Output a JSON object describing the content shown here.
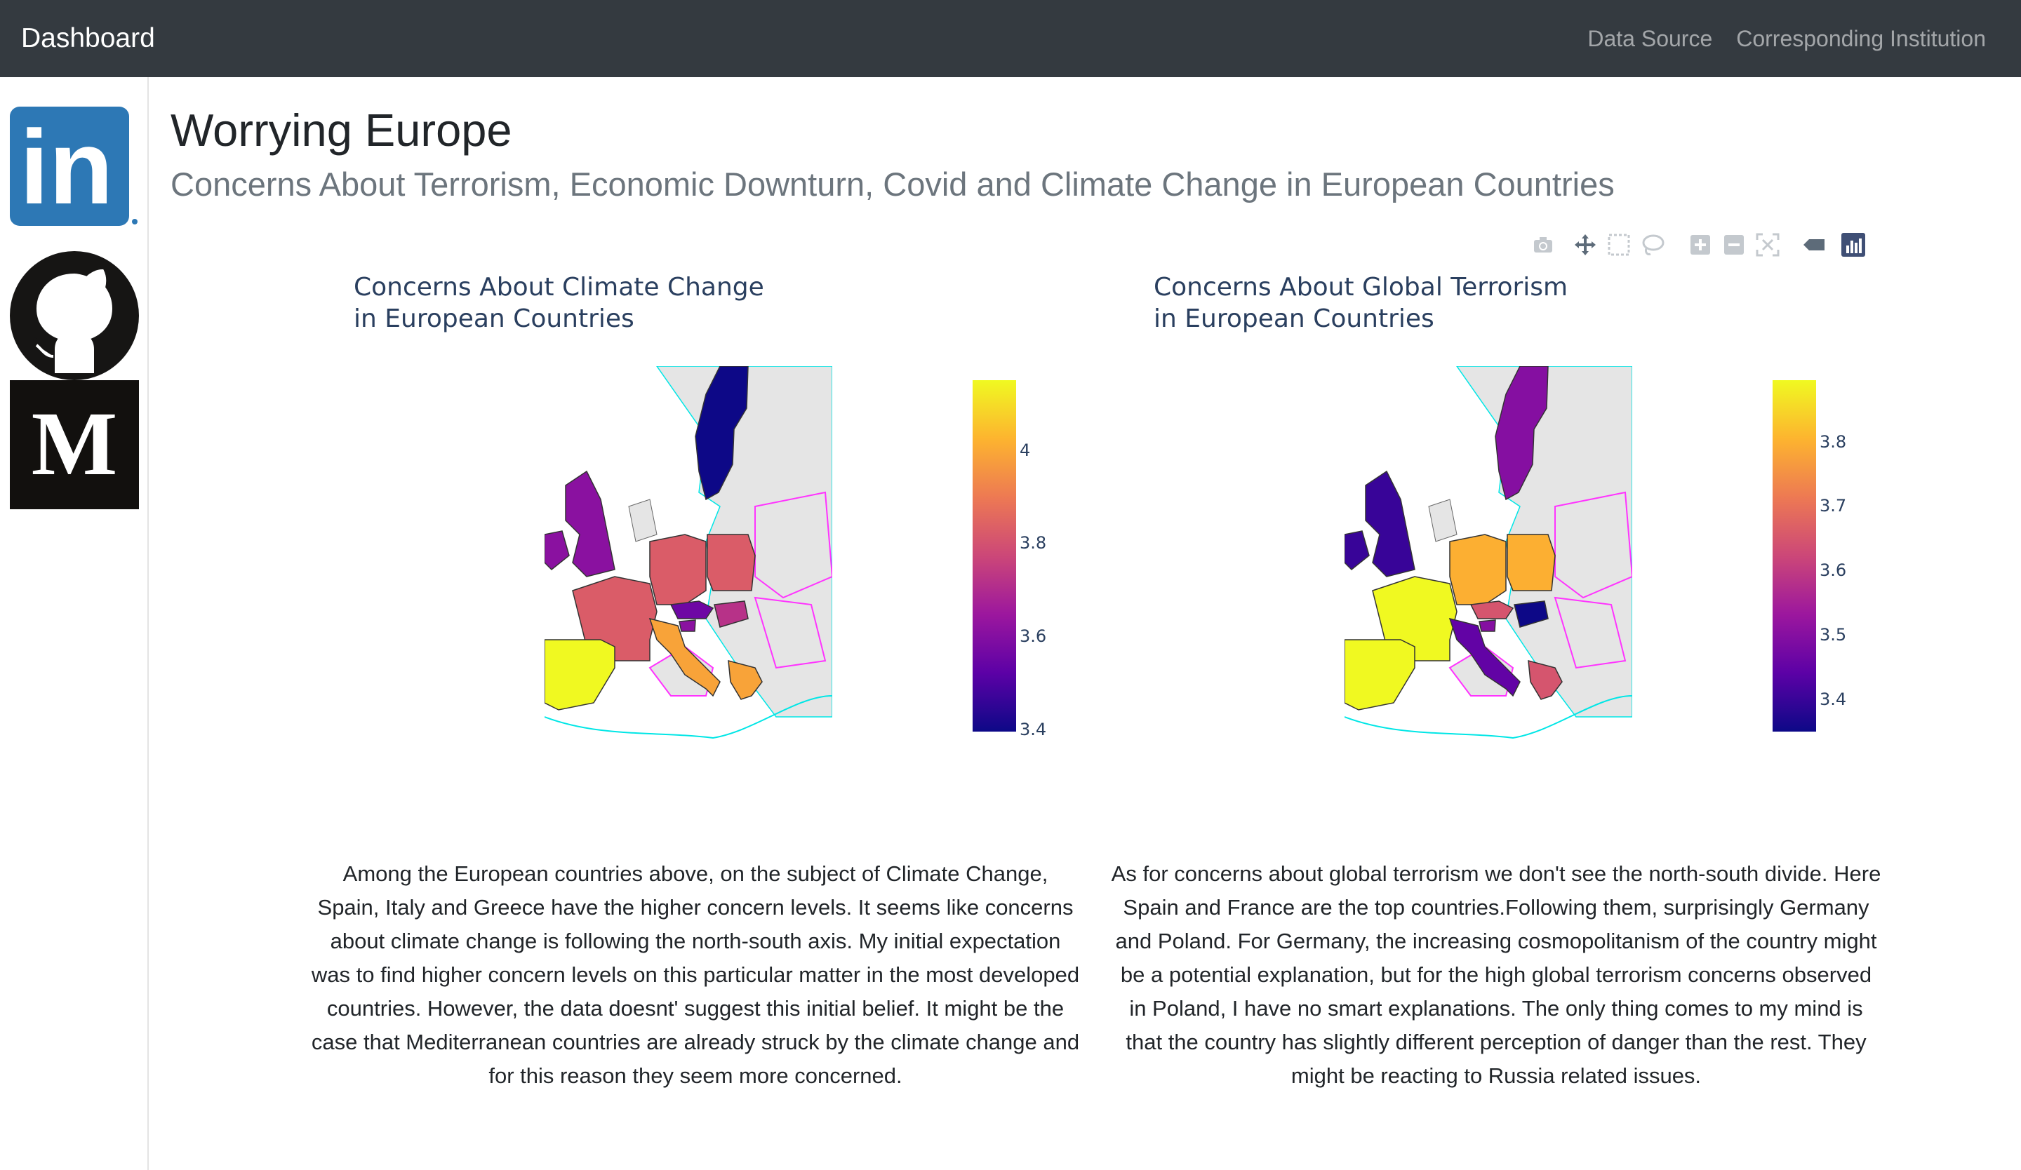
{
  "navbar": {
    "brand": "Dashboard",
    "links": [
      "Data Source",
      "Corresponding Institution"
    ]
  },
  "sidebar": {
    "icons": [
      "linkedin-icon",
      "github-icon",
      "medium-icon"
    ],
    "medium_letter": "M",
    "linkedin_letters": "in"
  },
  "header": {
    "title": "Worrying Europe",
    "subtitle": "Concerns About Terrorism, Economic Downturn, Covid and Climate Change in European Countries"
  },
  "modebar": {
    "icons": [
      "camera-icon",
      "pan-icon",
      "box-select-icon",
      "lasso-icon",
      "zoom-in-icon",
      "zoom-out-icon",
      "autoscale-icon",
      "hover-icon",
      "plotly-logo-icon"
    ]
  },
  "charts": {
    "left": {
      "title_line1": "Concerns About Climate Change",
      "title_line2": "in European Countries",
      "colorbar_ticks": [
        "4",
        "3.8",
        "3.6",
        "3.4"
      ]
    },
    "right": {
      "title_line1": "Concerns About Global Terrorism",
      "title_line2": "in European Countries",
      "colorbar_ticks": [
        "3.8",
        "3.7",
        "3.6",
        "3.5",
        "3.4"
      ]
    }
  },
  "chart_data": [
    {
      "type": "choropleth",
      "title": "Concerns About Climate Change in European Countries",
      "colorscale": "plasma",
      "colorbar_range": [
        3.4,
        4.1
      ],
      "colorbar_ticks": [
        3.4,
        3.6,
        3.8,
        4
      ],
      "values": {
        "Sweden": 3.4,
        "Germany": 3.8,
        "Poland": 3.8,
        "France": 3.8,
        "United Kingdom": 3.6,
        "Ireland": 3.6,
        "Spain": 4.1,
        "Italy": 3.95,
        "Greece": 3.95,
        "Austria": 3.55,
        "Hungary": 3.7,
        "Slovenia": 3.6
      }
    },
    {
      "type": "choropleth",
      "title": "Concerns About Global Terrorism in European Countries",
      "colorscale": "plasma",
      "colorbar_range": [
        3.35,
        3.9
      ],
      "colorbar_ticks": [
        3.4,
        3.5,
        3.6,
        3.7,
        3.8
      ],
      "values": {
        "Sweden": 3.5,
        "Germany": 3.8,
        "Poland": 3.8,
        "France": 3.9,
        "United Kingdom": 3.4,
        "Ireland": 3.4,
        "Spain": 3.9,
        "Italy": 3.45,
        "Greece": 3.65,
        "Austria": 3.65,
        "Hungary": 3.35,
        "Slovenia": 3.5
      }
    }
  ],
  "paragraphs": {
    "left": "Among the European countries above, on the subject of Climate Change, Spain, Italy and Greece have the higher concern levels. It seems like concerns about climate change is following the north-south axis. My initial expectation was to find higher concern levels on this particular matter in the most developed countries. However, the data doesnt' suggest this initial belief. It might be the case that Mediterranean countries are already struck by the climate change and for this reason they seem more concerned.",
    "right": "As for concerns about global terrorism we don't see the north-south divide. Here Spain and France are the top countries.Following them, surprisingly Germany and Poland. For Germany, the increasing cosmopolitanism of the country might be a potential explanation, but for the high global terrorism concerns observed in Poland, I have no smart explanations. The only thing comes to my mind is that the country has slightly different perception of danger than the rest. They might be reacting to Russia related issues."
  }
}
